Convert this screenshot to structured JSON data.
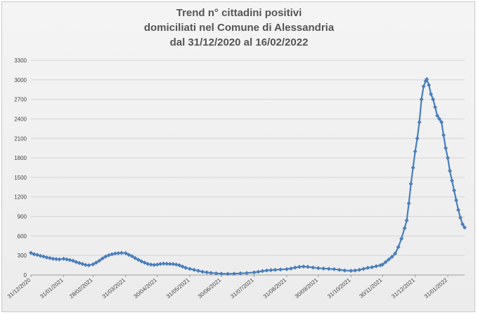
{
  "chart_data": {
    "type": "line",
    "title_lines": [
      "Trend n° cittadini positivi",
      "domiciliati nel Comune di Alessandria",
      "dal 31/12/2020 al 16/02/2022"
    ],
    "xlabel": "",
    "ylabel": "",
    "ylim": [
      0,
      3300
    ],
    "y_ticks": [
      0,
      300,
      600,
      900,
      1200,
      1500,
      1800,
      2100,
      2400,
      2700,
      3000,
      3300
    ],
    "x_range": [
      "2020-12-31",
      "2022-02-16"
    ],
    "x_tick_labels": [
      "31/12/2020",
      "31/01/2021",
      "28/02/2021",
      "31/03/2021",
      "30/04/2021",
      "31/05/2021",
      "30/06/2021",
      "31/07/2021",
      "31/08/2021",
      "30/09/2021",
      "31/10/2021",
      "30/11/2021",
      "31/12/2021",
      "31/01/2022"
    ],
    "x_tick_dates": [
      "2020-12-31",
      "2021-01-31",
      "2021-02-28",
      "2021-03-31",
      "2021-04-30",
      "2021-05-31",
      "2021-06-30",
      "2021-07-31",
      "2021-08-31",
      "2021-09-30",
      "2021-10-31",
      "2021-11-30",
      "2021-12-31",
      "2022-01-31"
    ],
    "grid": "horizontal",
    "line_color": "#4a7ebb",
    "series": [
      {
        "points": [
          [
            "2020-12-31",
            340
          ],
          [
            "2021-01-03",
            320
          ],
          [
            "2021-01-06",
            310
          ],
          [
            "2021-01-09",
            295
          ],
          [
            "2021-01-12",
            285
          ],
          [
            "2021-01-15",
            270
          ],
          [
            "2021-01-18",
            260
          ],
          [
            "2021-01-21",
            250
          ],
          [
            "2021-01-24",
            245
          ],
          [
            "2021-01-27",
            240
          ],
          [
            "2021-01-31",
            250
          ],
          [
            "2021-02-03",
            240
          ],
          [
            "2021-02-06",
            230
          ],
          [
            "2021-02-09",
            220
          ],
          [
            "2021-02-12",
            200
          ],
          [
            "2021-02-15",
            185
          ],
          [
            "2021-02-18",
            170
          ],
          [
            "2021-02-21",
            155
          ],
          [
            "2021-02-24",
            150
          ],
          [
            "2021-02-28",
            165
          ],
          [
            "2021-03-03",
            190
          ],
          [
            "2021-03-06",
            220
          ],
          [
            "2021-03-09",
            255
          ],
          [
            "2021-03-12",
            285
          ],
          [
            "2021-03-15",
            305
          ],
          [
            "2021-03-18",
            320
          ],
          [
            "2021-03-21",
            330
          ],
          [
            "2021-03-24",
            335
          ],
          [
            "2021-03-27",
            340
          ],
          [
            "2021-03-31",
            335
          ],
          [
            "2021-04-03",
            310
          ],
          [
            "2021-04-06",
            290
          ],
          [
            "2021-04-09",
            260
          ],
          [
            "2021-04-12",
            235
          ],
          [
            "2021-04-15",
            210
          ],
          [
            "2021-04-18",
            190
          ],
          [
            "2021-04-21",
            170
          ],
          [
            "2021-04-24",
            160
          ],
          [
            "2021-04-27",
            155
          ],
          [
            "2021-04-30",
            160
          ],
          [
            "2021-05-03",
            170
          ],
          [
            "2021-05-06",
            175
          ],
          [
            "2021-05-09",
            172
          ],
          [
            "2021-05-12",
            170
          ],
          [
            "2021-05-15",
            168
          ],
          [
            "2021-05-18",
            160
          ],
          [
            "2021-05-21",
            150
          ],
          [
            "2021-05-24",
            130
          ],
          [
            "2021-05-27",
            110
          ],
          [
            "2021-05-31",
            95
          ],
          [
            "2021-06-04",
            80
          ],
          [
            "2021-06-08",
            65
          ],
          [
            "2021-06-12",
            50
          ],
          [
            "2021-06-16",
            40
          ],
          [
            "2021-06-20",
            32
          ],
          [
            "2021-06-25",
            25
          ],
          [
            "2021-06-30",
            20
          ],
          [
            "2021-07-06",
            18
          ],
          [
            "2021-07-12",
            20
          ],
          [
            "2021-07-18",
            25
          ],
          [
            "2021-07-24",
            30
          ],
          [
            "2021-07-31",
            40
          ],
          [
            "2021-08-04",
            50
          ],
          [
            "2021-08-08",
            60
          ],
          [
            "2021-08-12",
            70
          ],
          [
            "2021-08-16",
            75
          ],
          [
            "2021-08-20",
            80
          ],
          [
            "2021-08-25",
            85
          ],
          [
            "2021-08-31",
            90
          ],
          [
            "2021-09-04",
            100
          ],
          [
            "2021-09-08",
            115
          ],
          [
            "2021-09-12",
            125
          ],
          [
            "2021-09-16",
            130
          ],
          [
            "2021-09-20",
            125
          ],
          [
            "2021-09-25",
            115
          ],
          [
            "2021-09-30",
            105
          ],
          [
            "2021-10-05",
            100
          ],
          [
            "2021-10-10",
            95
          ],
          [
            "2021-10-15",
            90
          ],
          [
            "2021-10-20",
            80
          ],
          [
            "2021-10-25",
            70
          ],
          [
            "2021-10-31",
            65
          ],
          [
            "2021-11-04",
            70
          ],
          [
            "2021-11-08",
            80
          ],
          [
            "2021-11-12",
            95
          ],
          [
            "2021-11-16",
            110
          ],
          [
            "2021-11-20",
            120
          ],
          [
            "2021-11-24",
            135
          ],
          [
            "2021-11-28",
            150
          ],
          [
            "2021-11-30",
            160
          ],
          [
            "2021-12-03",
            200
          ],
          [
            "2021-12-06",
            240
          ],
          [
            "2021-12-09",
            280
          ],
          [
            "2021-12-12",
            330
          ],
          [
            "2021-12-15",
            430
          ],
          [
            "2021-12-18",
            560
          ],
          [
            "2021-12-21",
            720
          ],
          [
            "2021-12-23",
            840
          ],
          [
            "2021-12-25",
            1100
          ],
          [
            "2021-12-27",
            1400
          ],
          [
            "2021-12-29",
            1650
          ],
          [
            "2021-12-31",
            1900
          ],
          [
            "2022-01-02",
            2100
          ],
          [
            "2022-01-04",
            2350
          ],
          [
            "2022-01-06",
            2700
          ],
          [
            "2022-01-08",
            2900
          ],
          [
            "2022-01-10",
            2980
          ],
          [
            "2022-01-11",
            3010
          ],
          [
            "2022-01-13",
            2920
          ],
          [
            "2022-01-15",
            2780
          ],
          [
            "2022-01-17",
            2700
          ],
          [
            "2022-01-19",
            2580
          ],
          [
            "2022-01-21",
            2450
          ],
          [
            "2022-01-23",
            2400
          ],
          [
            "2022-01-25",
            2350
          ],
          [
            "2022-01-27",
            2150
          ],
          [
            "2022-01-29",
            1950
          ],
          [
            "2022-01-31",
            1800
          ],
          [
            "2022-02-02",
            1600
          ],
          [
            "2022-02-04",
            1450
          ],
          [
            "2022-02-06",
            1300
          ],
          [
            "2022-02-08",
            1150
          ],
          [
            "2022-02-10",
            1000
          ],
          [
            "2022-02-12",
            880
          ],
          [
            "2022-02-14",
            780
          ],
          [
            "2022-02-16",
            730
          ]
        ]
      }
    ]
  }
}
